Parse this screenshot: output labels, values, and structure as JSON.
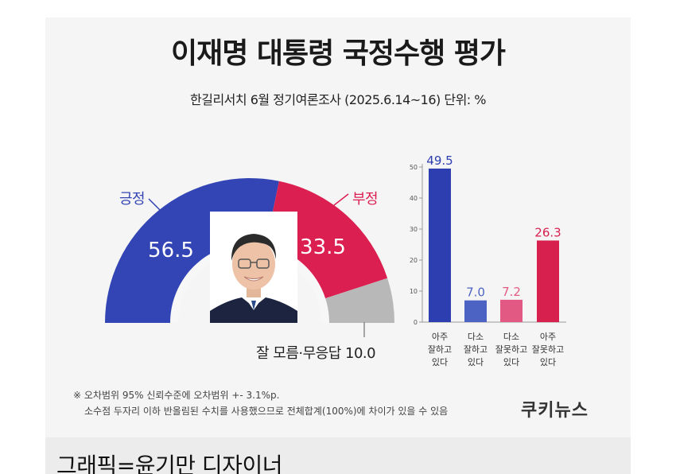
{
  "header": {
    "title": "이재명 대통령 국정수행 평가",
    "subtitle": "한길리서치 6월 정기여론조사 (2025.6.14~16) 단위: %"
  },
  "chart_data": [
    {
      "type": "pie",
      "style": "half-donut",
      "labels": [
        "긍정",
        "부정",
        "잘 모름·무응답"
      ],
      "values": [
        56.5,
        33.5,
        10.0
      ],
      "value_labels": [
        "56.5",
        "33.5",
        "10.0"
      ],
      "colors": [
        "#3345b4",
        "#dc1f51",
        "#b8b8b8"
      ],
      "unknown_text": "잘 모름·무응답 10.0"
    },
    {
      "type": "bar",
      "categories": [
        [
          "아주",
          "잘하고",
          "있다"
        ],
        [
          "다소",
          "잘하고",
          "있다"
        ],
        [
          "다소",
          "잘못하고",
          "있다"
        ],
        [
          "아주",
          "잘못하고",
          "있다"
        ]
      ],
      "values": [
        49.5,
        7.0,
        7.2,
        26.3
      ],
      "value_labels": [
        "49.5",
        "7.0",
        "7.2",
        "26.3"
      ],
      "colors": [
        "#2d3fb0",
        "#4d63c4",
        "#e25a83",
        "#d8204f"
      ],
      "ylim": [
        0,
        50
      ],
      "yticks": [
        "0",
        "10",
        "20",
        "30",
        "40",
        "50"
      ],
      "grid": false
    }
  ],
  "notes": {
    "line1": "※ 오차범위 95% 신뢰수준에 오차범위 +- 3.1%p.",
    "line2": "소수점 두자리 이하 반올림된 수치를 사용했으므로 전체합계(100%)에 차이가 있을 수 있음"
  },
  "brand": "쿠키뉴스",
  "credit": "그래픽=윤기만 디자이너"
}
